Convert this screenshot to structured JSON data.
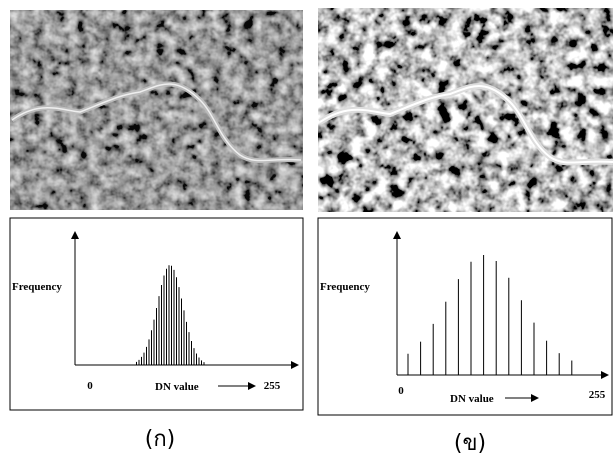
{
  "panels": [
    {
      "label": "(ก)",
      "histogram": {
        "y_label": "Frequency",
        "x_label": "DN value",
        "x_min": "0",
        "x_max": "255"
      }
    },
    {
      "label": "(ข)",
      "histogram": {
        "y_label": "Frequency",
        "x_label": "DN value",
        "x_min": "0",
        "x_max": "255"
      }
    }
  ]
}
